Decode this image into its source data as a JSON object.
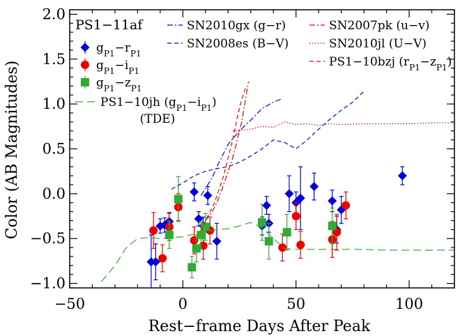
{
  "chart_data": {
    "type": "scatter",
    "title": "PS1−11af",
    "xlabel": "Rest−frame Days After Peak",
    "ylabel": "Color (AB Magnitudes)",
    "xlim": [
      -50,
      120
    ],
    "ylim": [
      -1.05,
      2.05
    ],
    "x_ticks": [
      -50,
      0,
      50,
      100
    ],
    "x_tick_labels": [
      "−50",
      "0",
      "50",
      "100"
    ],
    "x_minor_step": 10,
    "y_ticks": [
      -1.0,
      -0.5,
      0.0,
      0.5,
      1.0,
      1.5,
      2.0
    ],
    "y_tick_labels": [
      "−1.0",
      "−0.5",
      "0.0",
      "0.5",
      "1.0",
      "1.5",
      "2.0"
    ],
    "y_minor_step": 0.1,
    "grid": false,
    "legend_placement": "top-left",
    "series": [
      {
        "name": "gP1−rP1",
        "label_parts": [
          [
            "g",
            "P1"
          ],
          [
            "−r",
            "P1"
          ]
        ],
        "kind": "points",
        "marker": "diamond",
        "color": "#0000dd",
        "points": [
          [
            -14,
            -0.76,
            0.3
          ],
          [
            -12,
            -0.76,
            0.2
          ],
          [
            -10,
            -0.36,
            0.08
          ],
          [
            -8,
            -0.35,
            0.08
          ],
          [
            -6,
            -0.31,
            0.1
          ],
          [
            5,
            0.02,
            0.1
          ],
          [
            7,
            -0.28,
            0.08
          ],
          [
            9,
            -0.36,
            0.1
          ],
          [
            11,
            -0.02,
            0.1
          ],
          [
            15,
            -0.53,
            0.2
          ],
          [
            35,
            -0.36,
            0.1
          ],
          [
            37,
            -0.13,
            0.1
          ],
          [
            38,
            -0.33,
            0.1
          ],
          [
            47,
            0.0,
            0.2
          ],
          [
            50,
            -0.1,
            0.12
          ],
          [
            52,
            -0.05,
            0.35
          ],
          [
            58,
            0.08,
            0.15
          ],
          [
            66,
            -0.08,
            0.12
          ],
          [
            68,
            -0.4,
            0.15
          ],
          [
            70,
            -0.18,
            0.15
          ],
          [
            97,
            0.2,
            0.1
          ]
        ]
      },
      {
        "name": "gP1−iP1",
        "label_parts": [
          [
            "g",
            "P1"
          ],
          [
            "−i",
            "P1"
          ]
        ],
        "kind": "points",
        "marker": "circle",
        "color": "#ee0000",
        "points": [
          [
            -13,
            -0.41,
            0.2
          ],
          [
            -9,
            -0.72,
            0.15
          ],
          [
            -6,
            -0.37,
            0.15
          ],
          [
            -2,
            -0.15,
            0.15
          ],
          [
            5,
            -0.52,
            0.15
          ],
          [
            9,
            -0.58,
            0.15
          ],
          [
            12,
            -0.41,
            0.15
          ],
          [
            44,
            -0.6,
            0.15
          ],
          [
            50,
            -0.25,
            0.15
          ],
          [
            52,
            -0.57,
            0.15
          ],
          [
            66,
            -0.51,
            0.2
          ],
          [
            68,
            -0.43,
            0.2
          ],
          [
            72,
            -0.13,
            0.15
          ]
        ]
      },
      {
        "name": "gP1−zP1",
        "label_parts": [
          [
            "g",
            "P1"
          ],
          [
            "−z",
            "P1"
          ]
        ],
        "kind": "points",
        "marker": "square",
        "color": "#33aa33",
        "points": [
          [
            -6,
            -0.46,
            0.15
          ],
          [
            -2,
            -0.06,
            0.25
          ],
          [
            4,
            -0.82,
            0.12
          ],
          [
            6,
            -0.61,
            0.15
          ],
          [
            8,
            -0.46,
            0.15
          ],
          [
            10,
            -0.37,
            0.15
          ],
          [
            35,
            -0.32,
            0.2
          ],
          [
            38,
            -0.53,
            0.2
          ],
          [
            46,
            -0.43,
            0.2
          ],
          [
            66,
            -0.36,
            0.2
          ]
        ]
      },
      {
        "name": "SN2010gx (g−r)",
        "kind": "line",
        "dash": "dashdot",
        "color": "#0000dd",
        "points": [
          [
            8,
            -0.02
          ],
          [
            11,
            0.1
          ],
          [
            13,
            0.18
          ],
          [
            15,
            0.3
          ],
          [
            20,
            0.55
          ],
          [
            25,
            0.7
          ],
          [
            30,
            0.82
          ],
          [
            35,
            0.95
          ],
          [
            40,
            1.02
          ],
          [
            42,
            1.04
          ],
          [
            44,
            1.06
          ]
        ]
      },
      {
        "name": "SN2008es (B−V)",
        "kind": "line",
        "dash": "dashed",
        "color": "#0000dd",
        "points": [
          [
            -5,
            0.05
          ],
          [
            0,
            0.12
          ],
          [
            5,
            0.2
          ],
          [
            10,
            0.25
          ],
          [
            15,
            0.28
          ],
          [
            20,
            0.3
          ],
          [
            25,
            0.35
          ],
          [
            30,
            0.42
          ],
          [
            35,
            0.5
          ],
          [
            40,
            0.6
          ],
          [
            45,
            0.57
          ],
          [
            50,
            0.5
          ],
          [
            55,
            0.6
          ],
          [
            60,
            0.72
          ],
          [
            65,
            0.83
          ],
          [
            70,
            0.93
          ],
          [
            75,
            1.02
          ],
          [
            80,
            1.14
          ]
        ]
      },
      {
        "name": "SN2007pk (u−v)",
        "kind": "line",
        "dash": "dashdot",
        "color": "#ee0000",
        "points": [
          [
            10,
            -0.3
          ],
          [
            13,
            -0.2
          ],
          [
            15,
            -0.1
          ],
          [
            18,
            0.1
          ],
          [
            20,
            0.25
          ],
          [
            22,
            0.4
          ],
          [
            24,
            0.6
          ],
          [
            26,
            0.8
          ],
          [
            27,
            0.95
          ],
          [
            28,
            1.1
          ],
          [
            29,
            1.25
          ]
        ]
      },
      {
        "name": "SN2010jl (U−V)",
        "kind": "line",
        "dash": "dotted",
        "color": "#ee0000",
        "points": [
          [
            22,
            0.7
          ],
          [
            30,
            0.72
          ],
          [
            35,
            0.75
          ],
          [
            40,
            0.74
          ],
          [
            45,
            0.8
          ],
          [
            50,
            0.77
          ],
          [
            55,
            0.78
          ],
          [
            60,
            0.76
          ],
          [
            65,
            0.78
          ],
          [
            70,
            0.77
          ],
          [
            80,
            0.78
          ],
          [
            90,
            0.78
          ],
          [
            100,
            0.78
          ],
          [
            110,
            0.79
          ],
          [
            120,
            0.79
          ]
        ]
      },
      {
        "name": "PS1−10bzj (rP1−zP1)",
        "label_parts": [
          [
            "PS1−10bzj (r",
            "P1"
          ],
          [
            "−z",
            "P1"
          ],
          [
            ")",
            ""
          ]
        ],
        "kind": "line",
        "dash": "dashed",
        "color": "#ee0000",
        "points": [
          [
            8,
            -0.42
          ],
          [
            10,
            -0.3
          ],
          [
            12,
            -0.2
          ],
          [
            14,
            -0.1
          ],
          [
            16,
            0.05
          ],
          [
            18,
            0.2
          ],
          [
            20,
            0.4
          ],
          [
            22,
            0.6
          ],
          [
            24,
            0.85
          ],
          [
            26,
            1.05
          ],
          [
            28,
            1.2
          ]
        ]
      },
      {
        "name": "PS1−10jh (gP1−iP1)",
        "label_parts": [
          [
            "PS1−10jh (g",
            "P1"
          ],
          [
            "−i",
            "P1"
          ],
          [
            ")",
            ""
          ]
        ],
        "label_line2": "(TDE)",
        "kind": "line",
        "dash": "longdash",
        "color": "#33aa33",
        "points": [
          [
            -36,
            -0.98
          ],
          [
            -30,
            -0.8
          ],
          [
            -25,
            -0.6
          ],
          [
            -20,
            -0.5
          ],
          [
            -15,
            -0.49
          ],
          [
            -10,
            -0.5
          ],
          [
            -5,
            -0.49
          ],
          [
            0,
            -0.48
          ],
          [
            5,
            -0.45
          ],
          [
            10,
            -0.43
          ],
          [
            15,
            -0.4
          ],
          [
            20,
            -0.39
          ],
          [
            25,
            -0.36
          ],
          [
            30,
            -0.32
          ],
          [
            35,
            -0.38
          ],
          [
            40,
            -0.5
          ],
          [
            45,
            -0.61
          ],
          [
            50,
            -0.62
          ],
          [
            60,
            -0.62
          ],
          [
            70,
            -0.62
          ],
          [
            80,
            -0.62
          ],
          [
            90,
            -0.63
          ],
          [
            100,
            -0.63
          ],
          [
            110,
            -0.63
          ],
          [
            120,
            -0.63
          ]
        ]
      }
    ]
  }
}
